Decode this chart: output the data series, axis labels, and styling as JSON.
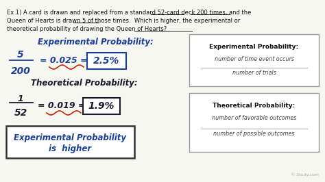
{
  "background_color": "#f7f7f2",
  "title_line1": "Ex 1) A card is drawn and replaced from a standard 52-card deck 200 times, and the",
  "title_line2": "Queen of Hearts is drawn 5 of those times.  Which is higher, the experimental or",
  "title_line3": "theoretical probability of drawing the Queen of Hearts?",
  "exp_label": "Experimental Probability:",
  "exp_fraction_num": "5",
  "exp_fraction_den": "200",
  "exp_equals": "= 0.025 =",
  "exp_result": "2.5%",
  "theo_label": "Theoretical Probability:",
  "theo_fraction_num": "1",
  "theo_fraction_den": "52",
  "theo_equals": "= 0.019 =",
  "theo_result": "1.9%",
  "answer_line1": "Experimental Probability",
  "answer_line2": "is  higher",
  "box1_title": "Experimental Probability:",
  "box1_line1": "number of time event occurs",
  "box1_line2": "number of trials",
  "box2_title": "Theoretical Probability:",
  "box2_line1": "number of favorable outcomes",
  "box2_line2": "number of possible outcomes",
  "watermark": "© Study.com",
  "blue": "#1c3f96",
  "dark": "#1a1a2e",
  "red_squiggle": "#cc2200",
  "text_color": "#111111"
}
